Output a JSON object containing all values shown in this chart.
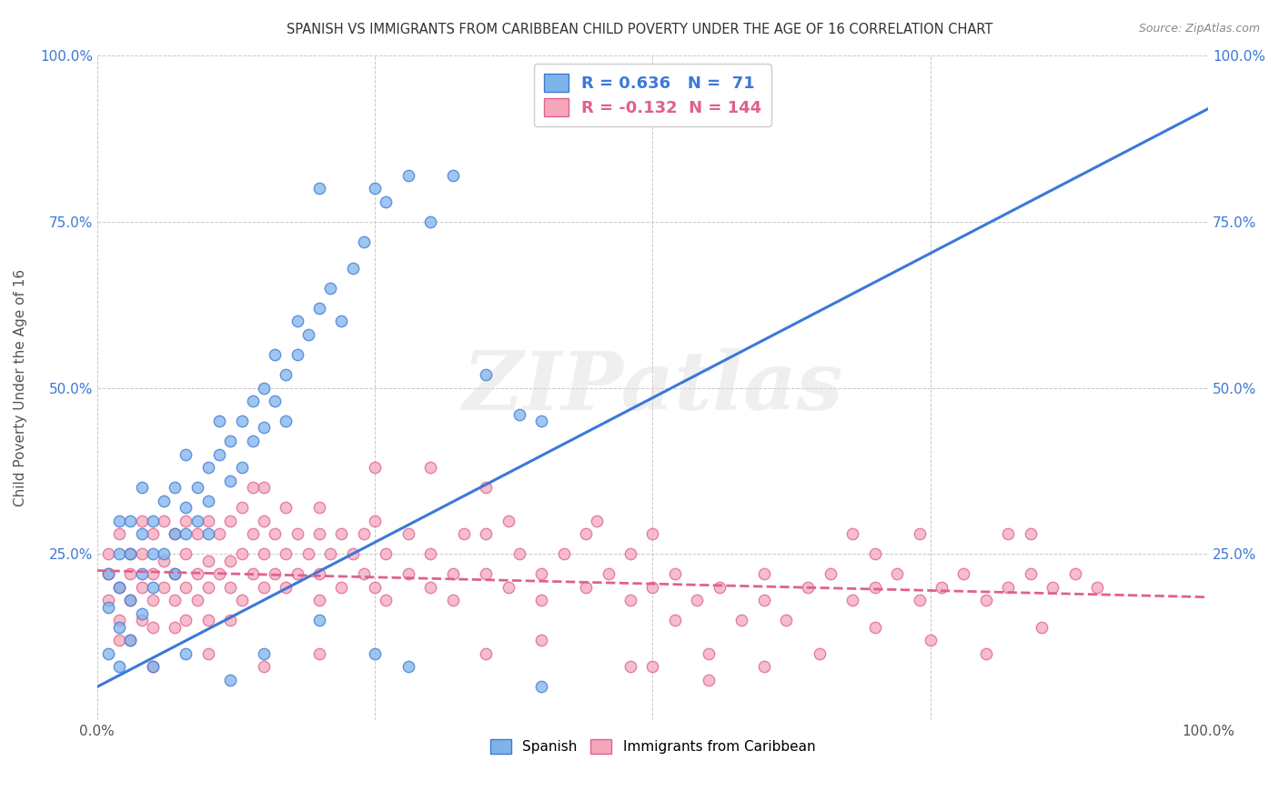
{
  "title": "SPANISH VS IMMIGRANTS FROM CARIBBEAN CHILD POVERTY UNDER THE AGE OF 16 CORRELATION CHART",
  "source": "Source: ZipAtlas.com",
  "ylabel": "Child Poverty Under the Age of 16",
  "xlim": [
    0,
    1.0
  ],
  "ylim": [
    0,
    1.0
  ],
  "blue_R": 0.636,
  "blue_N": 71,
  "pink_R": -0.132,
  "pink_N": 144,
  "blue_color": "#7EB4EA",
  "pink_color": "#F4A7B9",
  "blue_line_color": "#3C78D8",
  "pink_line_color": "#E06090",
  "watermark": "ZIPatlas",
  "legend_label_blue": "Spanish",
  "legend_label_pink": "Immigrants from Caribbean",
  "blue_line_x0": 0.0,
  "blue_line_y0": 0.05,
  "blue_line_x1": 1.0,
  "blue_line_y1": 0.92,
  "pink_line_x0": 0.0,
  "pink_line_y0": 0.225,
  "pink_line_x1": 1.0,
  "pink_line_y1": 0.185,
  "blue_scatter": [
    [
      0.01,
      0.1
    ],
    [
      0.01,
      0.17
    ],
    [
      0.01,
      0.22
    ],
    [
      0.02,
      0.14
    ],
    [
      0.02,
      0.2
    ],
    [
      0.02,
      0.25
    ],
    [
      0.02,
      0.3
    ],
    [
      0.02,
      0.08
    ],
    [
      0.03,
      0.18
    ],
    [
      0.03,
      0.25
    ],
    [
      0.03,
      0.12
    ],
    [
      0.03,
      0.3
    ],
    [
      0.04,
      0.22
    ],
    [
      0.04,
      0.28
    ],
    [
      0.04,
      0.16
    ],
    [
      0.04,
      0.35
    ],
    [
      0.05,
      0.2
    ],
    [
      0.05,
      0.3
    ],
    [
      0.05,
      0.25
    ],
    [
      0.06,
      0.33
    ],
    [
      0.06,
      0.25
    ],
    [
      0.07,
      0.28
    ],
    [
      0.07,
      0.35
    ],
    [
      0.07,
      0.22
    ],
    [
      0.08,
      0.32
    ],
    [
      0.08,
      0.4
    ],
    [
      0.08,
      0.28
    ],
    [
      0.09,
      0.35
    ],
    [
      0.09,
      0.3
    ],
    [
      0.1,
      0.38
    ],
    [
      0.1,
      0.33
    ],
    [
      0.1,
      0.28
    ],
    [
      0.11,
      0.4
    ],
    [
      0.11,
      0.45
    ],
    [
      0.12,
      0.42
    ],
    [
      0.12,
      0.36
    ],
    [
      0.13,
      0.45
    ],
    [
      0.13,
      0.38
    ],
    [
      0.14,
      0.48
    ],
    [
      0.14,
      0.42
    ],
    [
      0.15,
      0.5
    ],
    [
      0.15,
      0.44
    ],
    [
      0.16,
      0.48
    ],
    [
      0.16,
      0.55
    ],
    [
      0.17,
      0.52
    ],
    [
      0.17,
      0.45
    ],
    [
      0.18,
      0.55
    ],
    [
      0.18,
      0.6
    ],
    [
      0.19,
      0.58
    ],
    [
      0.2,
      0.62
    ],
    [
      0.21,
      0.65
    ],
    [
      0.22,
      0.6
    ],
    [
      0.23,
      0.68
    ],
    [
      0.24,
      0.72
    ],
    [
      0.25,
      0.8
    ],
    [
      0.26,
      0.78
    ],
    [
      0.28,
      0.82
    ],
    [
      0.3,
      0.75
    ],
    [
      0.32,
      0.82
    ],
    [
      0.35,
      0.52
    ],
    [
      0.38,
      0.46
    ],
    [
      0.4,
      0.45
    ],
    [
      0.08,
      0.1
    ],
    [
      0.12,
      0.06
    ],
    [
      0.15,
      0.1
    ],
    [
      0.2,
      0.15
    ],
    [
      0.25,
      0.1
    ],
    [
      0.28,
      0.08
    ],
    [
      0.05,
      0.08
    ],
    [
      0.4,
      0.05
    ],
    [
      0.2,
      0.8
    ]
  ],
  "pink_scatter": [
    [
      0.01,
      0.22
    ],
    [
      0.01,
      0.18
    ],
    [
      0.01,
      0.25
    ],
    [
      0.02,
      0.2
    ],
    [
      0.02,
      0.15
    ],
    [
      0.02,
      0.28
    ],
    [
      0.02,
      0.12
    ],
    [
      0.03,
      0.22
    ],
    [
      0.03,
      0.18
    ],
    [
      0.03,
      0.25
    ],
    [
      0.03,
      0.12
    ],
    [
      0.04,
      0.2
    ],
    [
      0.04,
      0.25
    ],
    [
      0.04,
      0.15
    ],
    [
      0.04,
      0.3
    ],
    [
      0.05,
      0.22
    ],
    [
      0.05,
      0.18
    ],
    [
      0.05,
      0.28
    ],
    [
      0.05,
      0.14
    ],
    [
      0.06,
      0.24
    ],
    [
      0.06,
      0.2
    ],
    [
      0.06,
      0.3
    ],
    [
      0.07,
      0.22
    ],
    [
      0.07,
      0.18
    ],
    [
      0.07,
      0.28
    ],
    [
      0.07,
      0.14
    ],
    [
      0.08,
      0.25
    ],
    [
      0.08,
      0.2
    ],
    [
      0.08,
      0.3
    ],
    [
      0.08,
      0.15
    ],
    [
      0.09,
      0.22
    ],
    [
      0.09,
      0.18
    ],
    [
      0.09,
      0.28
    ],
    [
      0.1,
      0.24
    ],
    [
      0.1,
      0.2
    ],
    [
      0.1,
      0.3
    ],
    [
      0.1,
      0.15
    ],
    [
      0.11,
      0.22
    ],
    [
      0.11,
      0.28
    ],
    [
      0.12,
      0.24
    ],
    [
      0.12,
      0.2
    ],
    [
      0.12,
      0.3
    ],
    [
      0.12,
      0.15
    ],
    [
      0.13,
      0.32
    ],
    [
      0.13,
      0.25
    ],
    [
      0.13,
      0.18
    ],
    [
      0.14,
      0.28
    ],
    [
      0.14,
      0.22
    ],
    [
      0.14,
      0.35
    ],
    [
      0.15,
      0.25
    ],
    [
      0.15,
      0.2
    ],
    [
      0.15,
      0.3
    ],
    [
      0.16,
      0.22
    ],
    [
      0.16,
      0.28
    ],
    [
      0.17,
      0.25
    ],
    [
      0.17,
      0.2
    ],
    [
      0.17,
      0.32
    ],
    [
      0.18,
      0.28
    ],
    [
      0.18,
      0.22
    ],
    [
      0.19,
      0.25
    ],
    [
      0.2,
      0.28
    ],
    [
      0.2,
      0.22
    ],
    [
      0.2,
      0.18
    ],
    [
      0.21,
      0.25
    ],
    [
      0.22,
      0.28
    ],
    [
      0.22,
      0.2
    ],
    [
      0.23,
      0.25
    ],
    [
      0.24,
      0.22
    ],
    [
      0.24,
      0.28
    ],
    [
      0.25,
      0.2
    ],
    [
      0.25,
      0.3
    ],
    [
      0.26,
      0.25
    ],
    [
      0.26,
      0.18
    ],
    [
      0.28,
      0.22
    ],
    [
      0.28,
      0.28
    ],
    [
      0.3,
      0.2
    ],
    [
      0.3,
      0.25
    ],
    [
      0.32,
      0.22
    ],
    [
      0.32,
      0.18
    ],
    [
      0.33,
      0.28
    ],
    [
      0.35,
      0.22
    ],
    [
      0.35,
      0.28
    ],
    [
      0.37,
      0.2
    ],
    [
      0.37,
      0.3
    ],
    [
      0.38,
      0.25
    ],
    [
      0.4,
      0.22
    ],
    [
      0.4,
      0.18
    ],
    [
      0.42,
      0.25
    ],
    [
      0.44,
      0.2
    ],
    [
      0.44,
      0.28
    ],
    [
      0.46,
      0.22
    ],
    [
      0.48,
      0.18
    ],
    [
      0.48,
      0.25
    ],
    [
      0.5,
      0.2
    ],
    [
      0.5,
      0.28
    ],
    [
      0.52,
      0.15
    ],
    [
      0.52,
      0.22
    ],
    [
      0.54,
      0.18
    ],
    [
      0.56,
      0.2
    ],
    [
      0.58,
      0.15
    ],
    [
      0.6,
      0.22
    ],
    [
      0.6,
      0.18
    ],
    [
      0.62,
      0.15
    ],
    [
      0.64,
      0.2
    ],
    [
      0.66,
      0.22
    ],
    [
      0.68,
      0.18
    ],
    [
      0.68,
      0.28
    ],
    [
      0.7,
      0.2
    ],
    [
      0.7,
      0.25
    ],
    [
      0.72,
      0.22
    ],
    [
      0.74,
      0.18
    ],
    [
      0.74,
      0.28
    ],
    [
      0.76,
      0.2
    ],
    [
      0.78,
      0.22
    ],
    [
      0.8,
      0.18
    ],
    [
      0.82,
      0.2
    ],
    [
      0.82,
      0.28
    ],
    [
      0.84,
      0.22
    ],
    [
      0.84,
      0.28
    ],
    [
      0.86,
      0.2
    ],
    [
      0.88,
      0.22
    ],
    [
      0.05,
      0.08
    ],
    [
      0.1,
      0.1
    ],
    [
      0.15,
      0.08
    ],
    [
      0.2,
      0.1
    ],
    [
      0.35,
      0.1
    ],
    [
      0.4,
      0.12
    ],
    [
      0.5,
      0.08
    ],
    [
      0.55,
      0.1
    ],
    [
      0.3,
      0.38
    ],
    [
      0.35,
      0.35
    ],
    [
      0.2,
      0.32
    ],
    [
      0.25,
      0.38
    ],
    [
      0.15,
      0.35
    ],
    [
      0.45,
      0.3
    ],
    [
      0.48,
      0.08
    ],
    [
      0.55,
      0.06
    ],
    [
      0.6,
      0.08
    ],
    [
      0.65,
      0.1
    ],
    [
      0.7,
      0.14
    ],
    [
      0.75,
      0.12
    ],
    [
      0.8,
      0.1
    ],
    [
      0.85,
      0.14
    ],
    [
      0.9,
      0.2
    ]
  ]
}
